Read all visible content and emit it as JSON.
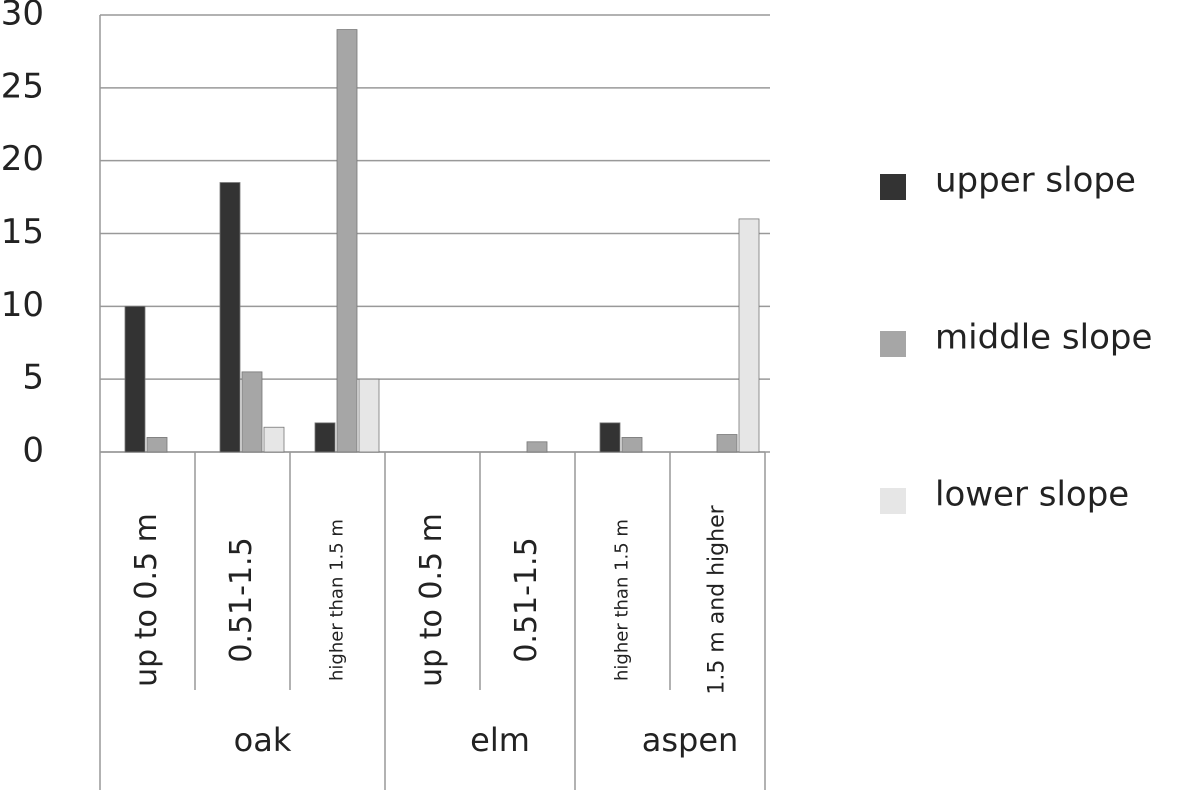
{
  "chart_data": {
    "type": "bar",
    "groups": [
      {
        "name": "oak",
        "categories": [
          "up to 0.5 m",
          "0.51-1.5",
          "higher than 1.5 m"
        ]
      },
      {
        "name": "elm",
        "categories": [
          "up to 0.5 m",
          "0.51-1.5"
        ]
      },
      {
        "name": "aspen",
        "categories": [
          "higher than 1.5 m",
          "1.5 m and higher"
        ]
      }
    ],
    "series": [
      {
        "name": "upper slope",
        "color": "#333333",
        "values": [
          10,
          18.5,
          2,
          0,
          0,
          2,
          0
        ]
      },
      {
        "name": "middle slope",
        "color": "#a6a6a6",
        "values": [
          1,
          5.5,
          29,
          0,
          0.7,
          1,
          1.2
        ]
      },
      {
        "name": "lower slope",
        "color": "#e6e6e6",
        "values": [
          0,
          1.7,
          5,
          0,
          0,
          0,
          16
        ]
      }
    ],
    "ylim": [
      0,
      30
    ],
    "yticks": [
      0,
      5,
      10,
      15,
      20,
      25,
      30
    ],
    "grid": true,
    "legend": "right"
  }
}
